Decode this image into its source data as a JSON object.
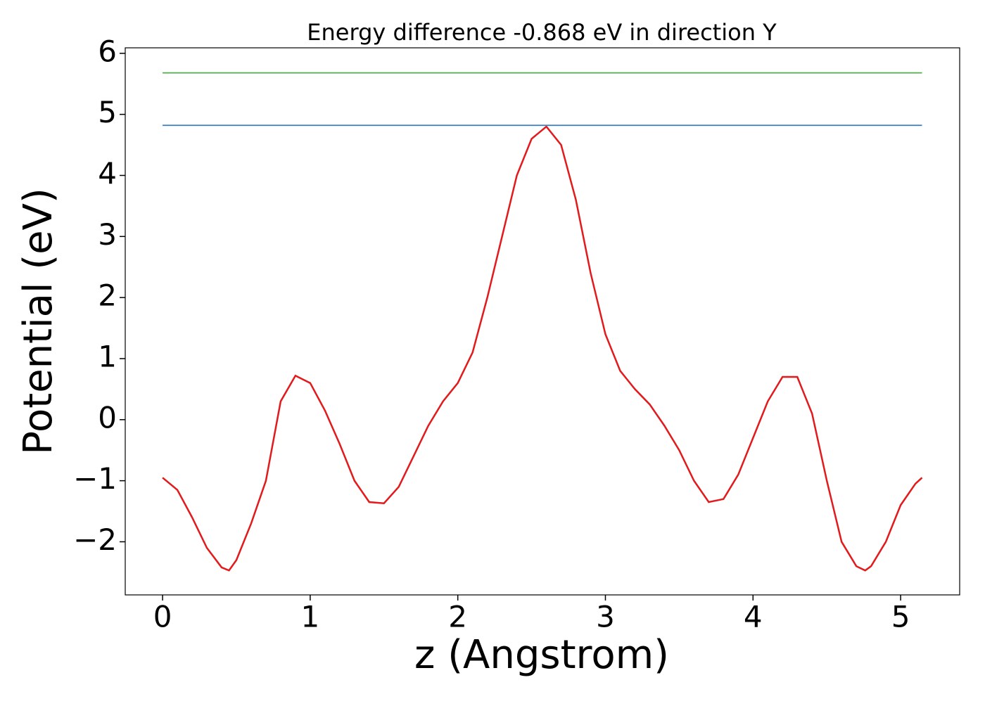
{
  "chart_data": {
    "type": "line",
    "title": "Energy difference -0.868 eV in direction Y",
    "x_label": "z (Angstrom)",
    "y_label": "Potential (eV)",
    "xlim": [
      -0.253,
      5.4
    ],
    "ylim": [
      -2.87,
      6.09
    ],
    "xticks": [
      0,
      1,
      2,
      3,
      4,
      5
    ],
    "yticks": [
      {
        "value": -2,
        "label": "−2"
      },
      {
        "value": -1,
        "label": "−1"
      },
      0,
      1,
      2,
      3,
      4,
      5,
      6
    ],
    "grid": false,
    "series": [
      {
        "color": "#e31a1c",
        "x": [
          0,
          0.1,
          0.2,
          0.3,
          0.4,
          0.45,
          0.5,
          0.6,
          0.7,
          0.8,
          0.9,
          1.0,
          1.1,
          1.2,
          1.3,
          1.4,
          1.5,
          1.6,
          1.7,
          1.8,
          1.9,
          2.0,
          2.1,
          2.2,
          2.3,
          2.4,
          2.5,
          2.6,
          2.7,
          2.8,
          2.9,
          3.0,
          3.1,
          3.2,
          3.3,
          3.4,
          3.5,
          3.6,
          3.7,
          3.8,
          3.9,
          4.0,
          4.1,
          4.2,
          4.3,
          4.4,
          4.5,
          4.6,
          4.7,
          4.76,
          4.8,
          4.9,
          5.0,
          5.1,
          5.145
        ],
        "values": [
          -0.95,
          -1.15,
          -1.6,
          -2.1,
          -2.42,
          -2.47,
          -2.3,
          -1.7,
          -1.0,
          0.3,
          0.72,
          0.6,
          0.15,
          -0.4,
          -1.0,
          -1.35,
          -1.37,
          -1.1,
          -0.6,
          -0.1,
          0.3,
          0.6,
          1.1,
          2.0,
          3.0,
          4.0,
          4.6,
          4.8,
          4.5,
          3.6,
          2.4,
          1.4,
          0.8,
          0.5,
          0.25,
          -0.1,
          -0.5,
          -1.0,
          -1.35,
          -1.3,
          -0.9,
          -0.3,
          0.3,
          0.7,
          0.7,
          0.1,
          -1.0,
          -2.0,
          -2.4,
          -2.47,
          -2.4,
          -2.0,
          -1.4,
          -1.05,
          -0.95
        ]
      },
      {
        "color": "#3a7cc0",
        "x": [
          0,
          5.145
        ],
        "values": [
          4.82,
          4.82
        ]
      },
      {
        "color": "#4daf4a",
        "x": [
          0,
          5.145
        ],
        "values": [
          5.68,
          5.68
        ]
      }
    ]
  }
}
